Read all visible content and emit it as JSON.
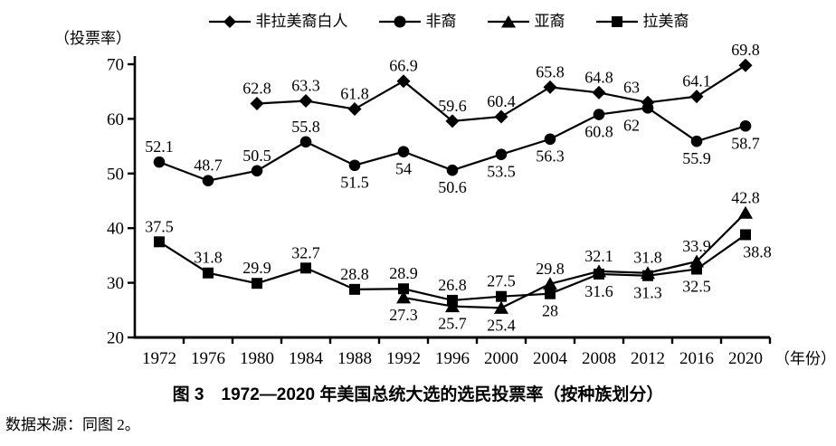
{
  "chart_data": {
    "type": "line",
    "title": "图 3　1972—2020 年美国总统大选的选民投票率（按种族划分）",
    "ylabel": "（投票率）",
    "xlabel": "（年份）",
    "ylim": [
      20,
      70
    ],
    "yticks": [
      20,
      30,
      40,
      50,
      60,
      70
    ],
    "grid": false,
    "legend_position": "top",
    "line_color": "#000000",
    "categories": [
      "1972",
      "1976",
      "1980",
      "1984",
      "1988",
      "1992",
      "1996",
      "2000",
      "2004",
      "2008",
      "2012",
      "2016",
      "2020"
    ],
    "series": [
      {
        "id": "white",
        "name": "非拉美裔白人",
        "marker": "diamond",
        "values": [
          null,
          null,
          62.8,
          63.3,
          61.8,
          66.9,
          59.6,
          60.4,
          65.8,
          64.8,
          63,
          64.1,
          69.8
        ],
        "label_side": [
          null,
          null,
          "above",
          "above",
          "above",
          "above",
          "above",
          "above",
          "above",
          "above",
          "above-left",
          "above",
          "above"
        ]
      },
      {
        "id": "black",
        "name": "非裔",
        "marker": "circle",
        "values": [
          52.1,
          48.7,
          50.5,
          55.8,
          51.5,
          54,
          50.6,
          53.5,
          56.3,
          60.8,
          62,
          55.9,
          58.7
        ],
        "label_side": [
          "above",
          "above",
          "above",
          "above",
          "below",
          "below",
          "below",
          "below",
          "below",
          "below",
          "below-left",
          "below",
          "below"
        ]
      },
      {
        "id": "asian",
        "name": "亚裔",
        "marker": "triangle",
        "values": [
          null,
          null,
          null,
          null,
          null,
          27.3,
          25.7,
          25.4,
          29.8,
          32.1,
          31.8,
          33.9,
          42.8
        ],
        "label_side": [
          null,
          null,
          null,
          null,
          null,
          "below",
          "below",
          "below",
          "above",
          "above",
          "above",
          "above",
          "above"
        ]
      },
      {
        "id": "hispanic",
        "name": "拉美裔",
        "marker": "square",
        "values": [
          37.5,
          31.8,
          29.9,
          32.7,
          28.8,
          28.9,
          26.8,
          27.5,
          28,
          31.6,
          31.3,
          32.5,
          38.8
        ],
        "label_side": [
          "above",
          "above",
          "above",
          "above",
          "above",
          "above",
          "above",
          "above",
          "below",
          "below",
          "below",
          "below",
          "below-right"
        ]
      }
    ]
  },
  "footer": {
    "source": "数据来源：同图 2。"
  }
}
